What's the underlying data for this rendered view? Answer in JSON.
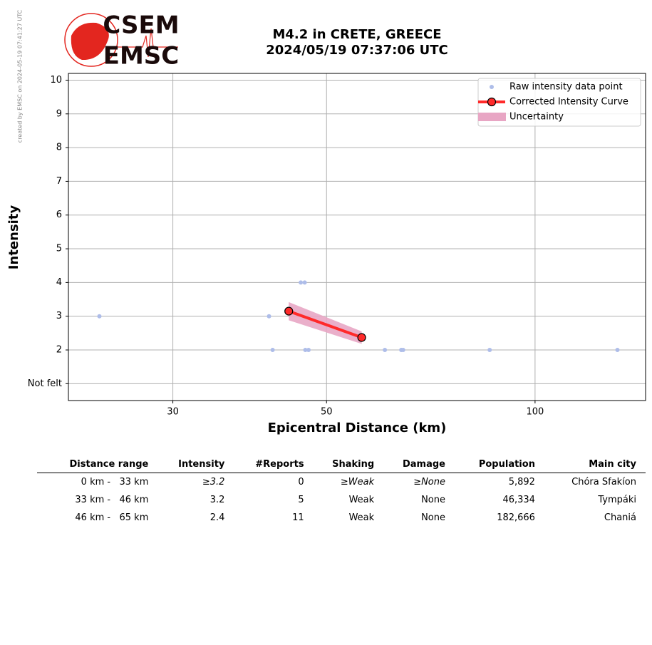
{
  "credit": "created by EMSC on 2024-05-19 07:41:27 UTC",
  "logo": {
    "top": "CSEM",
    "bottom": "EMSC"
  },
  "chart_data": {
    "type": "scatter",
    "title": "M4.2 in CRETE, GREECE",
    "subtitle": "2024/05/19 07:37:06 UTC",
    "x_label": "Epicentral Distance (km)",
    "y_label": "Intensity",
    "xscale": "log",
    "xlim": [
      21.2,
      144.4
    ],
    "ylim": [
      0.5,
      10.2
    ],
    "xticks": [
      30,
      50,
      100
    ],
    "yticks": [
      {
        "value": 1,
        "label": "Not felt"
      },
      2,
      3,
      4,
      5,
      6,
      7,
      8,
      9,
      10
    ],
    "grid": true,
    "legend": "upper right",
    "series": [
      {
        "name": "Raw intensity data point",
        "style": "points",
        "color": "#aebde9",
        "x": [
          23.5,
          41.3,
          41.8,
          45.9,
          46.5,
          46.6,
          47.1,
          60.7,
          64.1,
          64.5,
          86.0,
          131.5
        ],
        "values": [
          3,
          3,
          2,
          4,
          4,
          2,
          2,
          2,
          2,
          2,
          2,
          2
        ]
      },
      {
        "name": "Corrected Intensity Curve",
        "style": "line",
        "color": "#ff2a2a",
        "x": [
          44.1,
          56.2
        ],
        "values": [
          3.15,
          2.37
        ]
      },
      {
        "name": "Uncertainty",
        "style": "band",
        "color": "#e8a6c4",
        "x": [
          44.1,
          56.2
        ],
        "lower": [
          2.88,
          2.18
        ],
        "upper": [
          3.42,
          2.55
        ]
      }
    ]
  },
  "table": {
    "columns": [
      "Distance range",
      "Intensity",
      "#Reports",
      "Shaking",
      "Damage",
      "Population",
      "Main city"
    ],
    "rows": [
      [
        "0 km -   33 km",
        "≥3.2",
        "0",
        "≥Weak",
        "≥None",
        "5,892",
        "Chóra Sfakíon"
      ],
      [
        "33 km -   46 km",
        "3.2",
        "5",
        "Weak",
        "None",
        "46,334",
        "Tympáki"
      ],
      [
        "46 km -   65 km",
        "2.4",
        "11",
        "Weak",
        "None",
        "182,666",
        "Chaniá"
      ]
    ]
  }
}
